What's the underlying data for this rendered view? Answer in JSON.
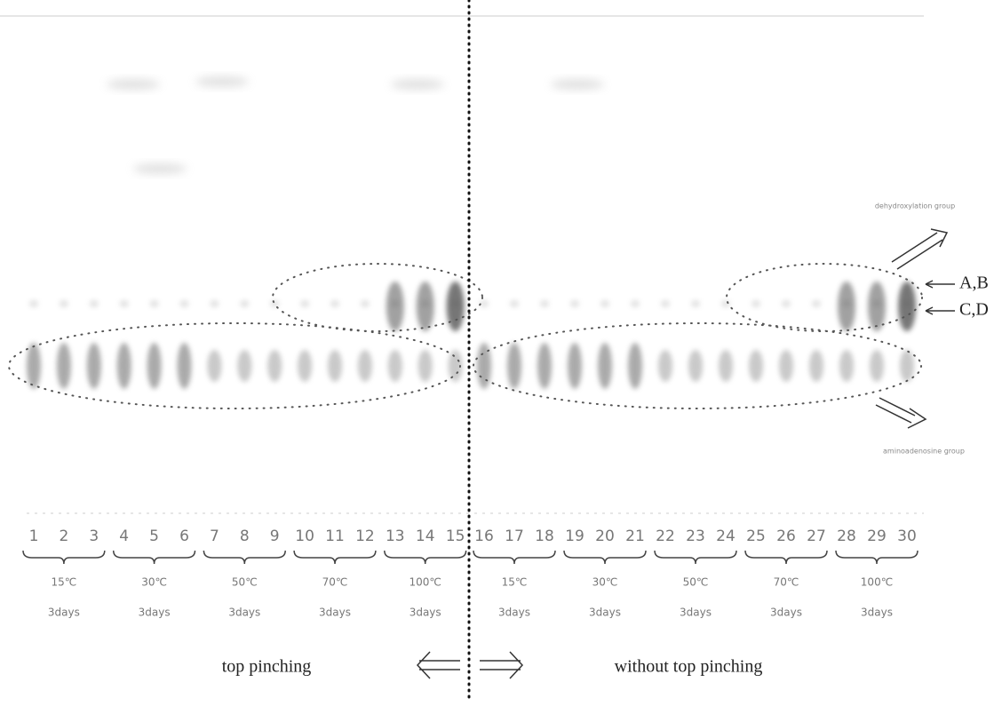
{
  "lanes": [
    "1",
    "2",
    "3",
    "4",
    "5",
    "6",
    "7",
    "8",
    "9",
    "10",
    "11",
    "12",
    "13",
    "14",
    "15",
    "16",
    "17",
    "18",
    "19",
    "20",
    "21",
    "22",
    "23",
    "24",
    "25",
    "26",
    "27",
    "28",
    "29",
    "30"
  ],
  "groups": [
    {
      "temp": "15℃",
      "duration": "3days"
    },
    {
      "temp": "30℃",
      "duration": "3days"
    },
    {
      "temp": "50℃",
      "duration": "3days"
    },
    {
      "temp": "70℃",
      "duration": "3days"
    },
    {
      "temp": "100℃",
      "duration": "3days"
    },
    {
      "temp": "15℃",
      "duration": "3days"
    },
    {
      "temp": "30℃",
      "duration": "3days"
    },
    {
      "temp": "50℃",
      "duration": "3days"
    },
    {
      "temp": "70℃",
      "duration": "3days"
    },
    {
      "temp": "100℃",
      "duration": "3days"
    }
  ],
  "annotations": {
    "upper_group": "dehydroxylation group",
    "lower_group": "aminoadenosine group",
    "ab": "A,B",
    "cd": "C,D"
  },
  "footer": {
    "left": "top pinching",
    "right": "without top pinching"
  }
}
